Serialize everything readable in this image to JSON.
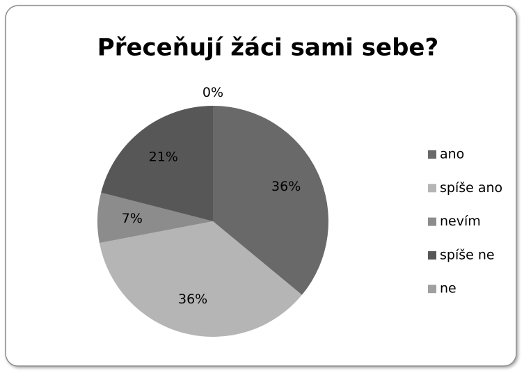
{
  "chart_data": {
    "type": "pie",
    "title": "Přeceňují žáci sami sebe?",
    "categories": [
      "ano",
      "spíše ano",
      "nevím",
      "spíše ne",
      "ne"
    ],
    "values": [
      36,
      36,
      7,
      21,
      0
    ],
    "value_labels": [
      "36%",
      "36%",
      "7%",
      "21%",
      "0%"
    ],
    "colors": [
      "#696969",
      "#b5b5b5",
      "#8c8c8c",
      "#575757",
      "#a0a0a0"
    ],
    "legend": "right"
  }
}
